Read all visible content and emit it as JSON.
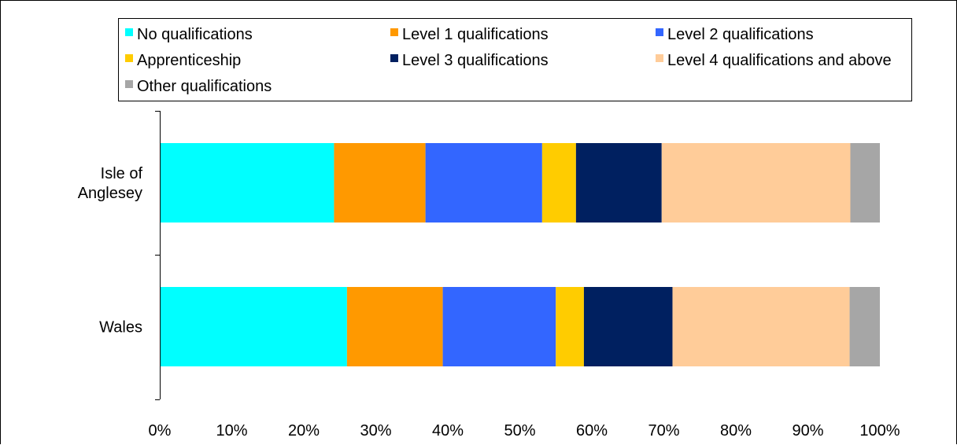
{
  "chart_data": {
    "type": "bar",
    "orientation": "horizontal",
    "stacked": "percent",
    "categories": [
      "Isle of Anglesey",
      "Wales"
    ],
    "category_label_lines": [
      [
        "Isle of",
        "Anglesey"
      ],
      [
        "Wales"
      ]
    ],
    "series": [
      {
        "name": "No qualifications",
        "color": "#00ffff",
        "values": [
          24.2,
          26.0
        ]
      },
      {
        "name": "Level 1 qualifications",
        "color": "#ff9900",
        "values": [
          12.7,
          13.3
        ]
      },
      {
        "name": "Level 2 qualifications",
        "color": "#3366ff",
        "values": [
          16.2,
          15.7
        ]
      },
      {
        "name": "Apprenticeship",
        "color": "#ffcc00",
        "values": [
          4.7,
          3.9
        ]
      },
      {
        "name": "Level 3 qualifications",
        "color": "#002060",
        "values": [
          11.9,
          12.3
        ]
      },
      {
        "name": "Level 4 qualifications and above",
        "color": "#ffcc99",
        "values": [
          26.2,
          24.6
        ]
      },
      {
        "name": "Other qualifications",
        "color": "#a6a6a6",
        "values": [
          4.1,
          4.2
        ]
      }
    ],
    "xlim": [
      0,
      100
    ],
    "xticks": [
      "0%",
      "10%",
      "20%",
      "30%",
      "40%",
      "50%",
      "60%",
      "70%",
      "80%",
      "90%",
      "100%"
    ],
    "grid": false,
    "legend": "top"
  }
}
